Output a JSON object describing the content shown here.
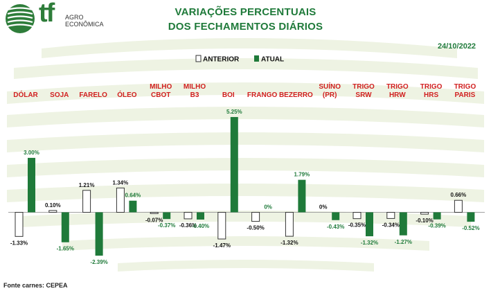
{
  "brand": {
    "mark": "tf",
    "line1": "AGRO",
    "line2": "ECONÔMICA",
    "color": "#2e7d3a"
  },
  "title_line1": "VARIAÇÕES PERCENTUAIS",
  "title_line2": "DOS FECHAMENTOS DIÁRIOS",
  "date": "24/10/2022",
  "source": "Fonte carnes: CEPEA",
  "colors": {
    "anterior_fill": "#ffffff",
    "anterior_stroke": "#333333",
    "atual_fill": "#1f7a3a",
    "label_red": "#d11f1f",
    "title_green": "#1f7a3a",
    "wave": "#eef3e3"
  },
  "chart_data": {
    "type": "bar",
    "legend_position": "top-center",
    "series": [
      {
        "name": "ANTERIOR",
        "values": [
          -1.33,
          0.1,
          1.21,
          1.34,
          -0.07,
          -0.36,
          -1.47,
          -0.5,
          -1.32,
          0,
          -0.35,
          -0.34,
          -0.1,
          0.66
        ]
      },
      {
        "name": "ATUAL",
        "values": [
          3.0,
          -1.65,
          -2.39,
          0.64,
          -0.37,
          -0.4,
          5.25,
          0,
          1.79,
          -0.43,
          -1.32,
          -1.27,
          -0.39,
          -0.52
        ]
      }
    ],
    "categories": [
      [
        "DÓLAR"
      ],
      [
        "SOJA"
      ],
      [
        "FARELO"
      ],
      [
        "ÓLEO"
      ],
      [
        "MILHO",
        "CBOT"
      ],
      [
        "MILHO",
        "B3"
      ],
      [
        "BOI"
      ],
      [
        "FRANGO"
      ],
      [
        "BEZERRO"
      ],
      [
        "SUÍNO",
        "(PR)"
      ],
      [
        "TRIGO",
        "SRW"
      ],
      [
        "TRIGO",
        "HRW"
      ],
      [
        "TRIGO",
        "HRS"
      ],
      [
        "TRIGO",
        "PARIS"
      ]
    ],
    "labels_anterior": [
      "-1.33%",
      "0.10%",
      "1.21%",
      "1.34%",
      "-0.07%",
      "-0.36%",
      "-1.47%",
      "-0.50%",
      "-1.32%",
      "0%",
      "-0.35%",
      "-0.34%",
      "-0.10%",
      "0.66%"
    ],
    "labels_atual": [
      "3.00%",
      "-1.65%",
      "-2.39%",
      "0.64%",
      "-0.37%",
      "-0.40%",
      "5.25%",
      "0%",
      "1.79%",
      "-0.43%",
      "-1.32%",
      "-1.27%",
      "-0.39%",
      "-0.52%"
    ]
  }
}
